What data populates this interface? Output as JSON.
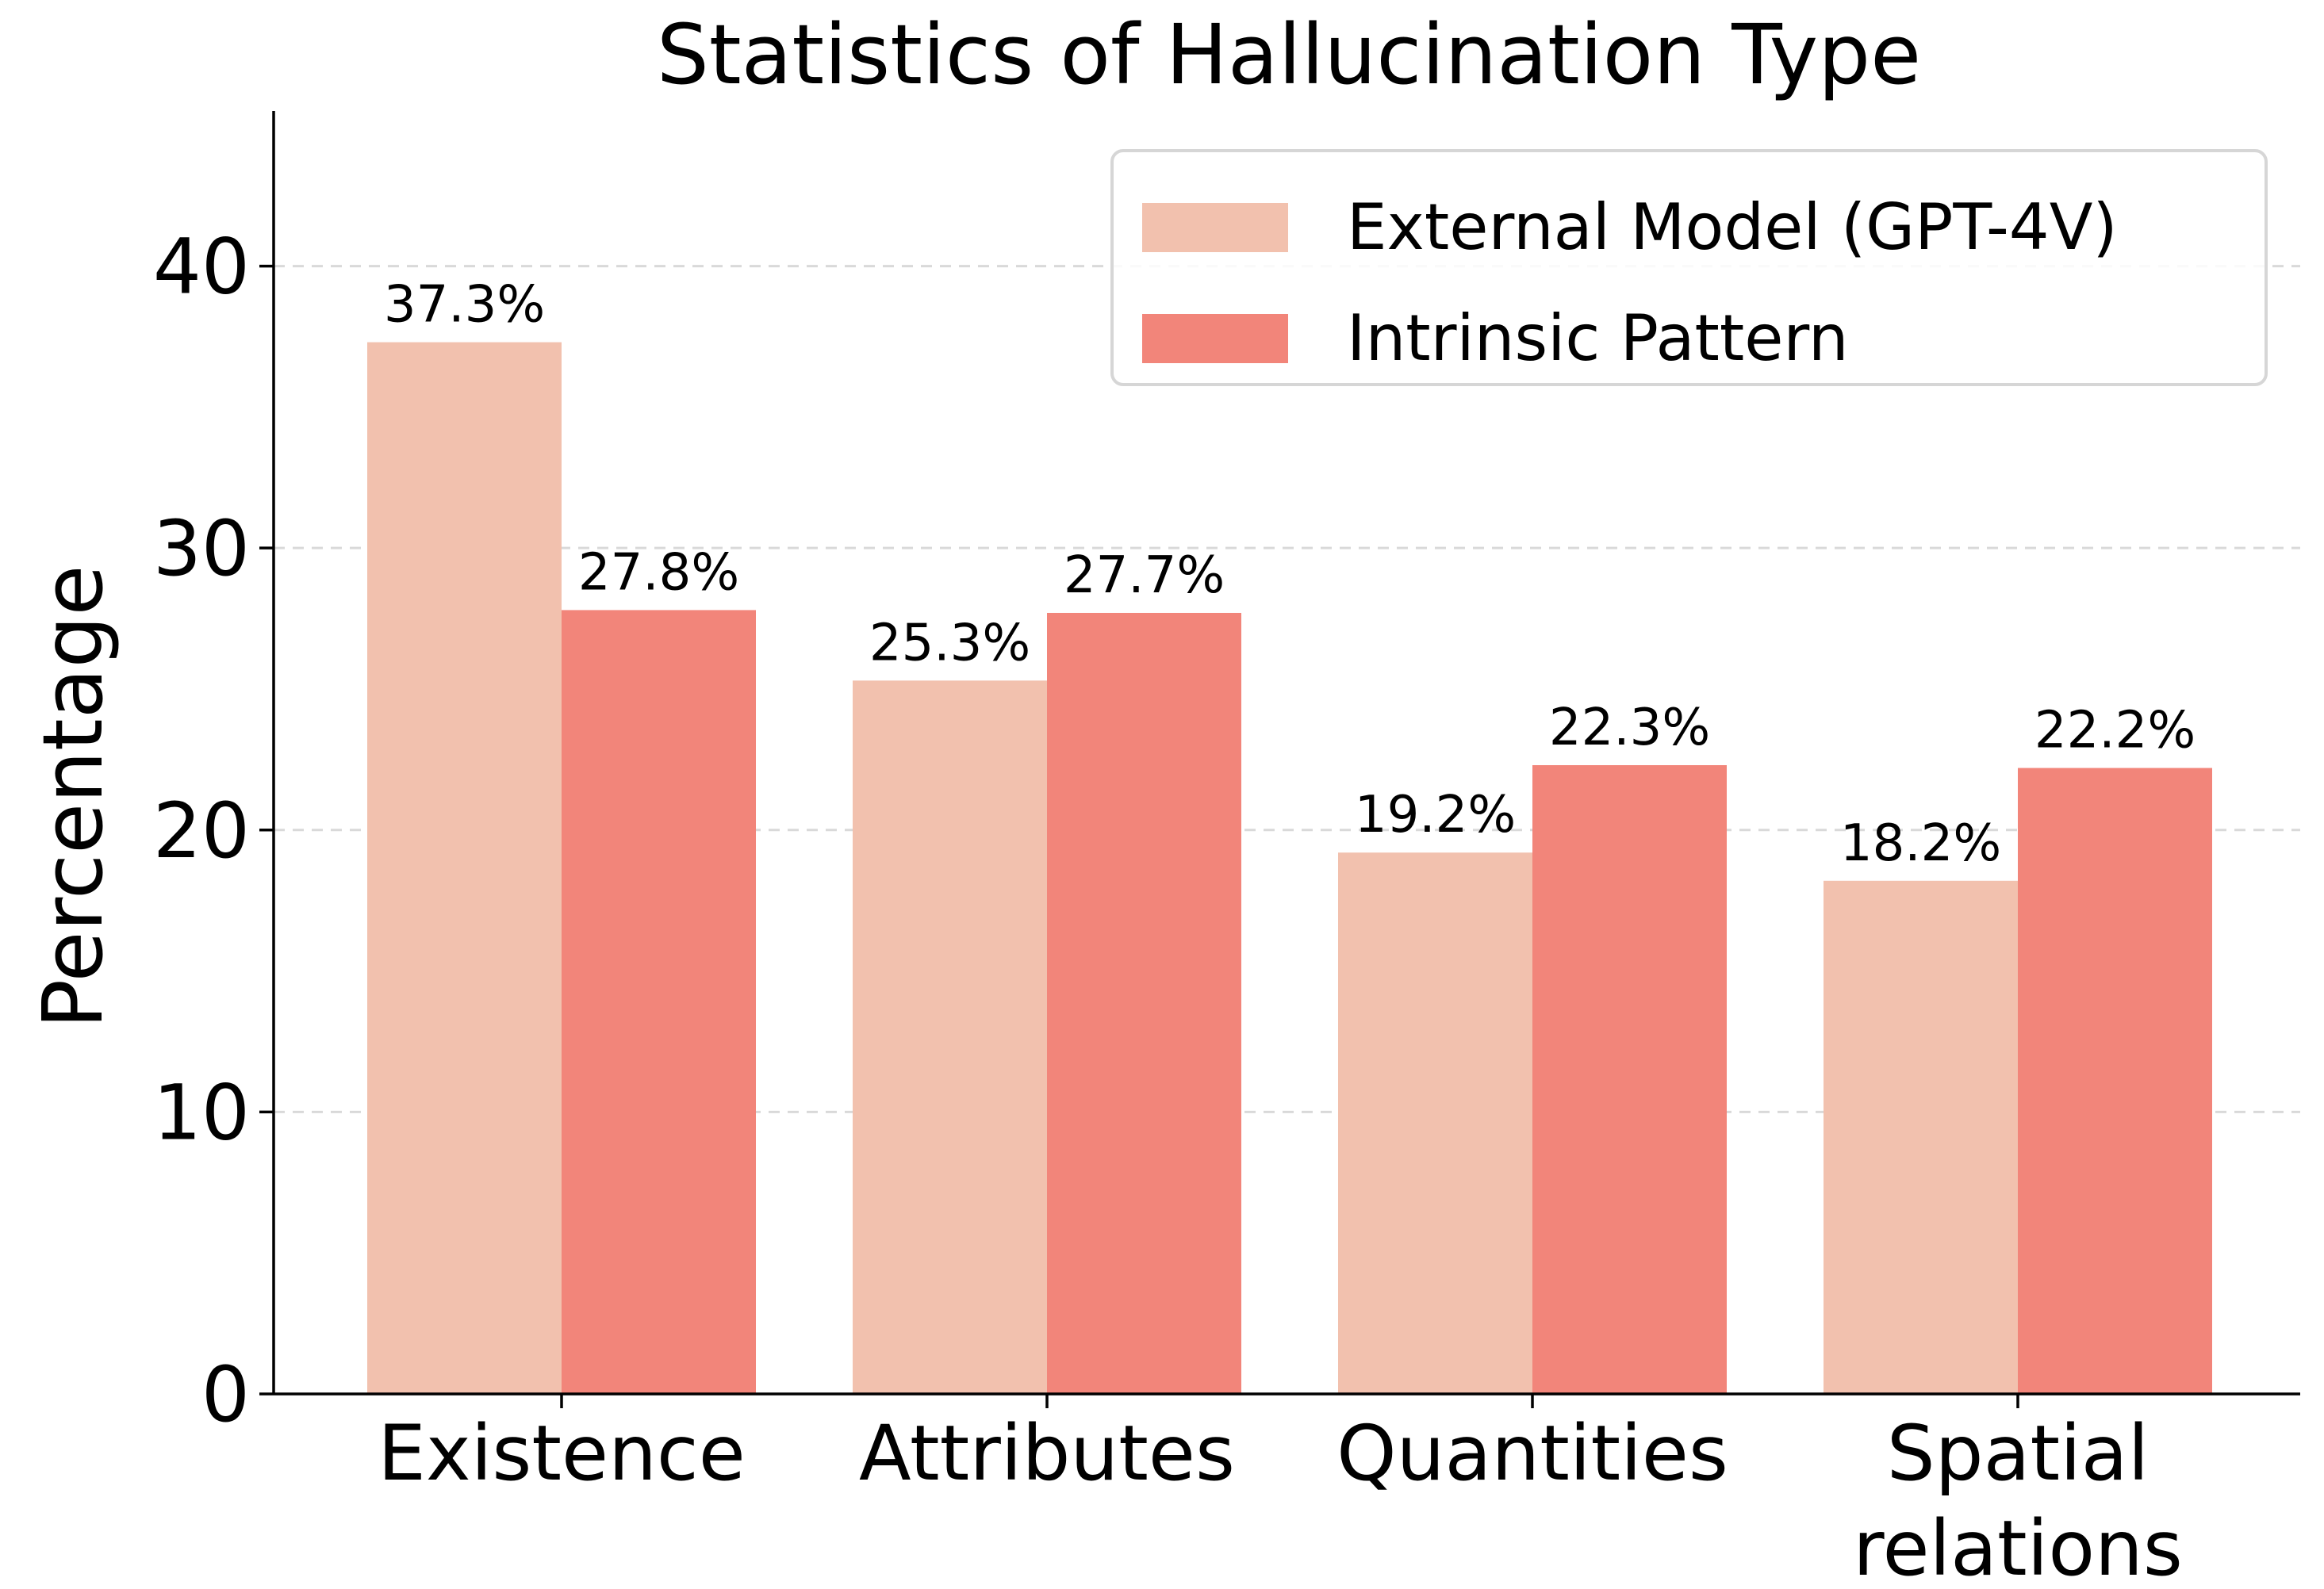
{
  "chart_data": {
    "type": "bar",
    "title": "Statistics of Hallucination Type",
    "xlabel": "",
    "ylabel": "Percentage",
    "ylim": [
      0,
      45.5
    ],
    "yticks": [
      0,
      10,
      20,
      30,
      40
    ],
    "grid": "y-dashed",
    "legend_position": "top-right",
    "categories": [
      [
        "Existence"
      ],
      [
        "Attributes"
      ],
      [
        "Quantities"
      ],
      [
        "Spatial",
        "relations"
      ]
    ],
    "series": [
      {
        "name": "External Model (GPT-4V)",
        "color": "#f2c1ae",
        "values": [
          37.3,
          25.3,
          19.2,
          18.2
        ],
        "labels": [
          "37.3%",
          "25.3%",
          "19.2%",
          "18.2%"
        ]
      },
      {
        "name": "Intrinsic Pattern",
        "color": "#f2857a",
        "values": [
          27.8,
          27.7,
          22.3,
          22.2
        ],
        "labels": [
          "27.8%",
          "27.7%",
          "22.3%",
          "22.2%"
        ]
      }
    ]
  }
}
